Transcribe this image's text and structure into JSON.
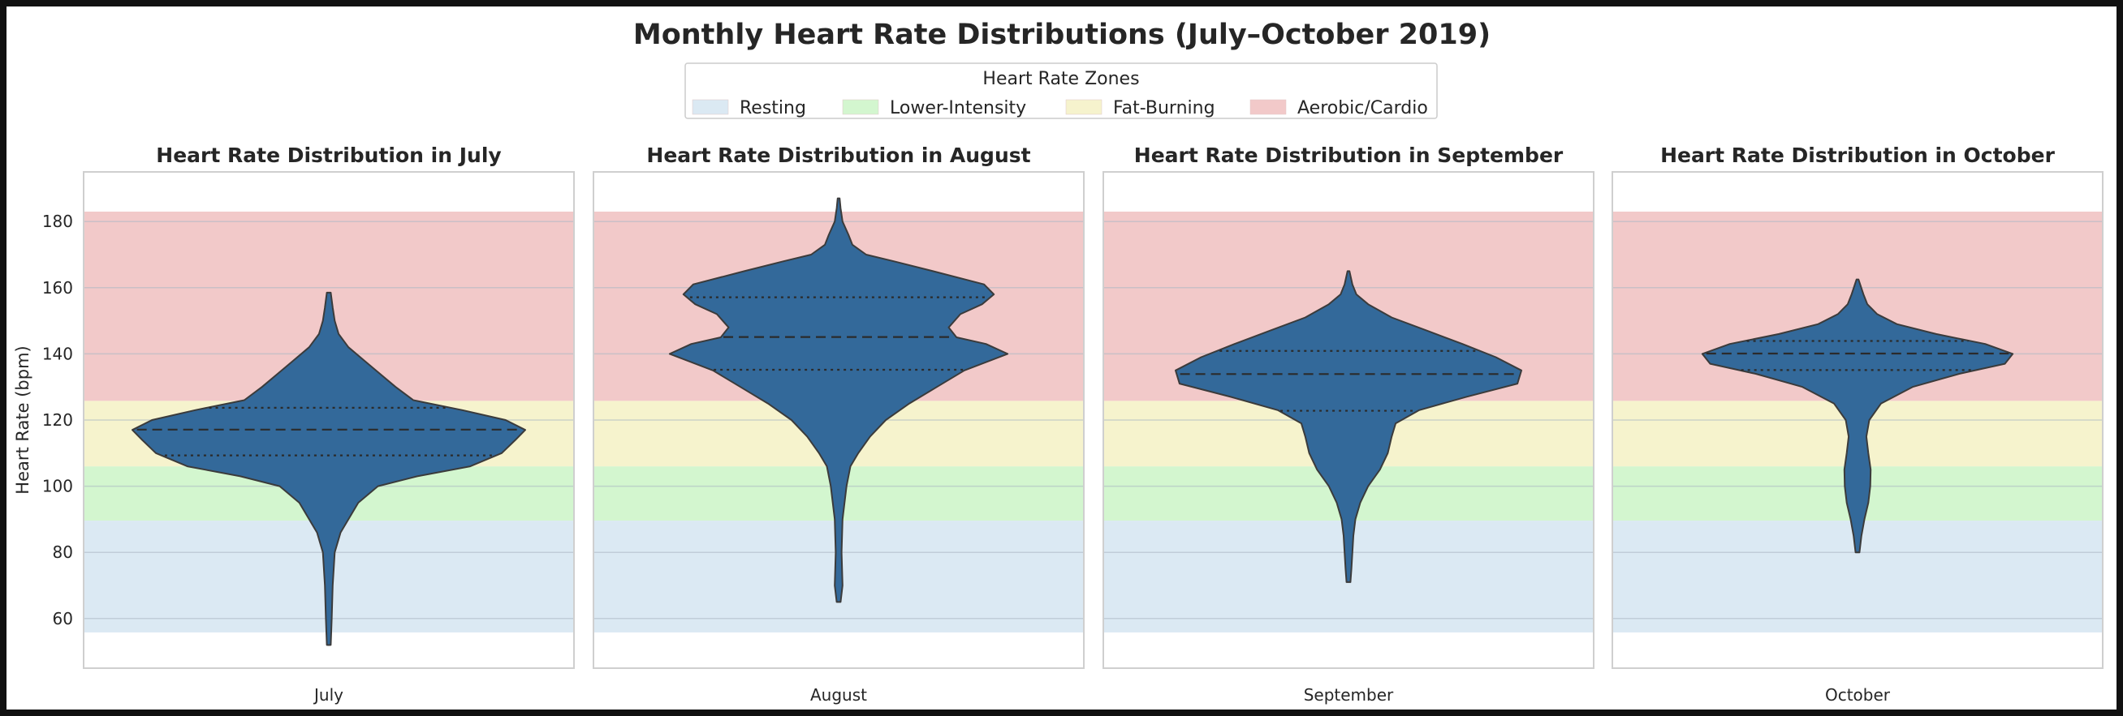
{
  "chart_data": {
    "type": "violin",
    "title": "Monthly Heart Rate Distributions (July–October 2019)",
    "ylabel": "Heart Rate (bpm)",
    "ylim": [
      45,
      195
    ],
    "yticks": [
      60,
      80,
      100,
      120,
      140,
      160,
      180
    ],
    "grid": true,
    "legend": {
      "title": "Heart Rate Zones",
      "placement": "top-center",
      "entries": [
        {
          "label": "Resting",
          "color": "#dbe9f3",
          "range": [
            55.8,
            89.6
          ]
        },
        {
          "label": "Lower-Intensity",
          "color": "#d3f6cf",
          "range": [
            89.6,
            106.0
          ]
        },
        {
          "label": "Fat-Burning",
          "color": "#f6f3cd",
          "range": [
            106.0,
            125.8
          ]
        },
        {
          "label": "Aerobic/Cardio",
          "color": "#f2c9c9",
          "range": [
            125.8,
            183.0
          ]
        }
      ]
    },
    "violin_color": "#33699a",
    "panels": [
      {
        "title": "Heart Rate Distribution in July",
        "xlabel": "July",
        "min": 52,
        "max": 158.5,
        "q1": 109.3,
        "median": 117.1,
        "q3": 123.7,
        "density": [
          [
            52,
            0.01
          ],
          [
            60,
            0.015
          ],
          [
            70,
            0.02
          ],
          [
            80,
            0.03
          ],
          [
            86,
            0.06
          ],
          [
            90,
            0.1
          ],
          [
            95,
            0.15
          ],
          [
            100,
            0.25
          ],
          [
            103,
            0.45
          ],
          [
            106,
            0.72
          ],
          [
            110,
            0.88
          ],
          [
            114,
            0.95
          ],
          [
            117,
            1.0
          ],
          [
            120,
            0.9
          ],
          [
            123,
            0.68
          ],
          [
            126,
            0.43
          ],
          [
            130,
            0.34
          ],
          [
            134,
            0.26
          ],
          [
            138,
            0.18
          ],
          [
            142,
            0.1
          ],
          [
            146,
            0.05
          ],
          [
            150,
            0.03
          ],
          [
            154,
            0.02
          ],
          [
            158.5,
            0.01
          ]
        ]
      },
      {
        "title": "Heart Rate Distribution in August",
        "xlabel": "August",
        "min": 65,
        "max": 187,
        "q1": 135.2,
        "median": 145.1,
        "q3": 157.1,
        "density": [
          [
            65,
            0.01
          ],
          [
            70,
            0.02
          ],
          [
            80,
            0.015
          ],
          [
            90,
            0.02
          ],
          [
            100,
            0.04
          ],
          [
            106,
            0.06
          ],
          [
            110,
            0.1
          ],
          [
            115,
            0.16
          ],
          [
            120,
            0.24
          ],
          [
            125,
            0.36
          ],
          [
            130,
            0.5
          ],
          [
            135,
            0.64
          ],
          [
            140,
            0.86
          ],
          [
            143,
            0.75
          ],
          [
            145,
            0.6
          ],
          [
            148,
            0.56
          ],
          [
            152,
            0.62
          ],
          [
            155,
            0.73
          ],
          [
            158,
            0.79
          ],
          [
            161,
            0.74
          ],
          [
            165,
            0.48
          ],
          [
            168,
            0.28
          ],
          [
            170,
            0.14
          ],
          [
            173,
            0.07
          ],
          [
            176,
            0.05
          ],
          [
            180,
            0.02
          ],
          [
            184,
            0.01
          ],
          [
            187,
            0.005
          ]
        ]
      },
      {
        "title": "Heart Rate Distribution in September",
        "xlabel": "September",
        "min": 71,
        "max": 165,
        "q1": 122.8,
        "median": 133.9,
        "q3": 140.9,
        "density": [
          [
            71,
            0.01
          ],
          [
            75,
            0.015
          ],
          [
            80,
            0.02
          ],
          [
            85,
            0.025
          ],
          [
            90,
            0.035
          ],
          [
            95,
            0.06
          ],
          [
            100,
            0.1
          ],
          [
            105,
            0.16
          ],
          [
            110,
            0.2
          ],
          [
            115,
            0.22
          ],
          [
            119,
            0.24
          ],
          [
            123,
            0.36
          ],
          [
            127,
            0.6
          ],
          [
            131,
            0.86
          ],
          [
            135,
            0.88
          ],
          [
            139,
            0.75
          ],
          [
            143,
            0.58
          ],
          [
            147,
            0.4
          ],
          [
            151,
            0.22
          ],
          [
            155,
            0.1
          ],
          [
            158,
            0.04
          ],
          [
            161,
            0.02
          ],
          [
            165,
            0.005
          ]
        ]
      },
      {
        "title": "Heart Rate Distribution in October",
        "xlabel": "October",
        "min": 80,
        "max": 162.5,
        "q1": 135.1,
        "median": 140.1,
        "q3": 143.9,
        "density": [
          [
            80,
            0.01
          ],
          [
            85,
            0.02
          ],
          [
            90,
            0.035
          ],
          [
            95,
            0.055
          ],
          [
            100,
            0.065
          ],
          [
            105,
            0.067
          ],
          [
            110,
            0.055
          ],
          [
            115,
            0.045
          ],
          [
            120,
            0.06
          ],
          [
            125,
            0.12
          ],
          [
            130,
            0.28
          ],
          [
            134,
            0.52
          ],
          [
            137,
            0.75
          ],
          [
            140,
            0.79
          ],
          [
            143,
            0.65
          ],
          [
            146,
            0.4
          ],
          [
            149,
            0.2
          ],
          [
            152,
            0.1
          ],
          [
            155,
            0.05
          ],
          [
            158,
            0.03
          ],
          [
            162.5,
            0.005
          ]
        ]
      }
    ]
  }
}
